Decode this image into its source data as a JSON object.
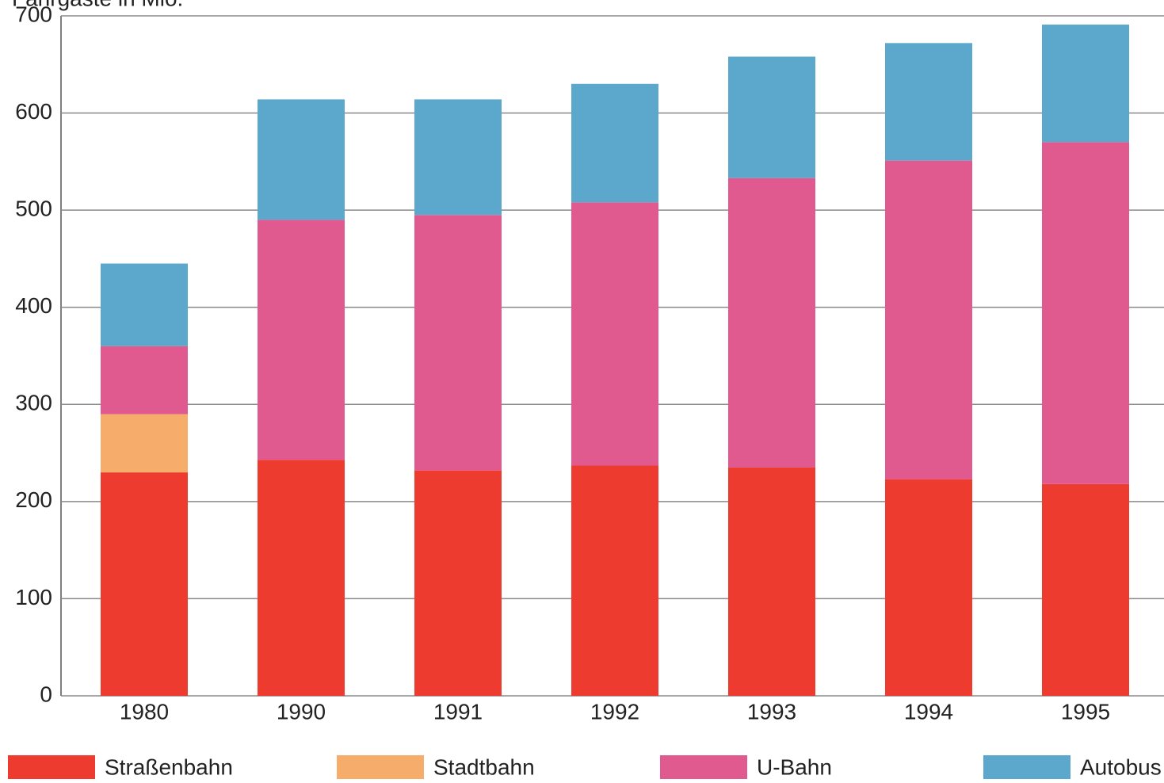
{
  "chart_data": {
    "type": "stacked_bar",
    "title": "Fahrgäste in Mio.",
    "categories": [
      "1980",
      "1990",
      "1991",
      "1992",
      "1993",
      "1994",
      "1995"
    ],
    "series": [
      {
        "name": "Straßenbahn",
        "color": "#ee3b2f",
        "values": [
          230,
          243,
          232,
          237,
          235,
          223,
          218
        ]
      },
      {
        "name": "Stadtbahn",
        "color": "#f6ad6b",
        "values": [
          60,
          0,
          0,
          0,
          0,
          0,
          0
        ]
      },
      {
        "name": "U-Bahn",
        "color": "#e05a8f",
        "values": [
          70,
          247,
          263,
          271,
          298,
          328,
          352
        ]
      },
      {
        "name": "Autobus",
        "color": "#5ba8cc",
        "values": [
          85,
          124,
          119,
          122,
          125,
          121,
          121
        ]
      }
    ],
    "ylim": [
      0,
      700
    ],
    "yticks": [
      0,
      100,
      200,
      300,
      400,
      500,
      600,
      700
    ],
    "grid": true
  }
}
